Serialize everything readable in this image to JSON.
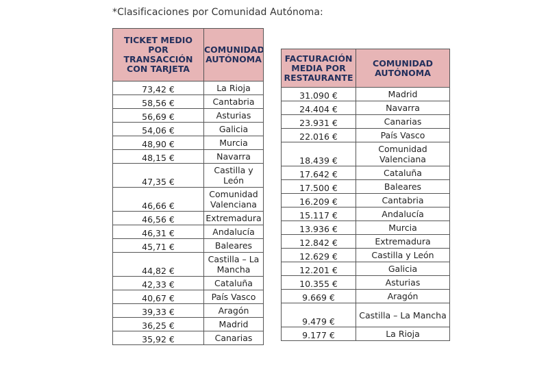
{
  "caption": "*Clasificaciones por Comunidad Autónoma:",
  "table1": {
    "headers": [
      "TICKET MEDIO POR TRANSACCIÓN CON TARJETA",
      "COMUNIDAD AUTÓNOMA"
    ],
    "rows": [
      {
        "value": "73,42 €",
        "region": "La Rioja"
      },
      {
        "value": "58,56 €",
        "region": "Cantabria"
      },
      {
        "value": "56,69 €",
        "region": "Asturias"
      },
      {
        "value": "54,06 €",
        "region": "Galicia"
      },
      {
        "value": "48,90 €",
        "region": "Murcia"
      },
      {
        "value": "48,15 €",
        "region": "Navarra"
      },
      {
        "value": "47,35 €",
        "region": "Castilla y León"
      },
      {
        "value": "46,66 €",
        "region": "Comunidad Valenciana"
      },
      {
        "value": "46,56 €",
        "region": "Extremadura"
      },
      {
        "value": "46,31 €",
        "region": "Andalucía"
      },
      {
        "value": "45,71 €",
        "region": "Baleares"
      },
      {
        "value": "44,82 €",
        "region": "Castilla – La Mancha"
      },
      {
        "value": "42,33 €",
        "region": "Cataluña"
      },
      {
        "value": "40,67 €",
        "region": "País Vasco"
      },
      {
        "value": "39,33 €",
        "region": "Aragón"
      },
      {
        "value": "36,25 €",
        "region": "Madrid"
      },
      {
        "value": "35,92 €",
        "region": "Canarias"
      }
    ]
  },
  "table2": {
    "headers": [
      "FACTURACIÓN MEDIA POR RESTAURANTE",
      "COMUNIDAD AUTÓNOMA"
    ],
    "rows": [
      {
        "value": "31.090 €",
        "region": "Madrid"
      },
      {
        "value": "24.404 €",
        "region": "Navarra"
      },
      {
        "value": "23.931 €",
        "region": "Canarias"
      },
      {
        "value": "22.016 €",
        "region": "País Vasco"
      },
      {
        "value": "18.439 €",
        "region": "Comunidad Valenciana"
      },
      {
        "value": "17.642 €",
        "region": "Cataluña"
      },
      {
        "value": "17.500 €",
        "region": "Baleares"
      },
      {
        "value": "16.209 €",
        "region": "Cantabria"
      },
      {
        "value": "15.117 €",
        "region": "Andalucía"
      },
      {
        "value": "13.936 €",
        "region": "Murcia"
      },
      {
        "value": "12.842 €",
        "region": "Extremadura"
      },
      {
        "value": "12.629 €",
        "region": "Castilla y León"
      },
      {
        "value": "12.201 €",
        "region": "Galicia"
      },
      {
        "value": "10.355 €",
        "region": "Asturias"
      },
      {
        "value": "9.669 €",
        "region": "Aragón"
      },
      {
        "value": "9.479 €",
        "region": "Castilla – La Mancha"
      },
      {
        "value": "9.177 €",
        "region": "La Rioja"
      }
    ]
  }
}
